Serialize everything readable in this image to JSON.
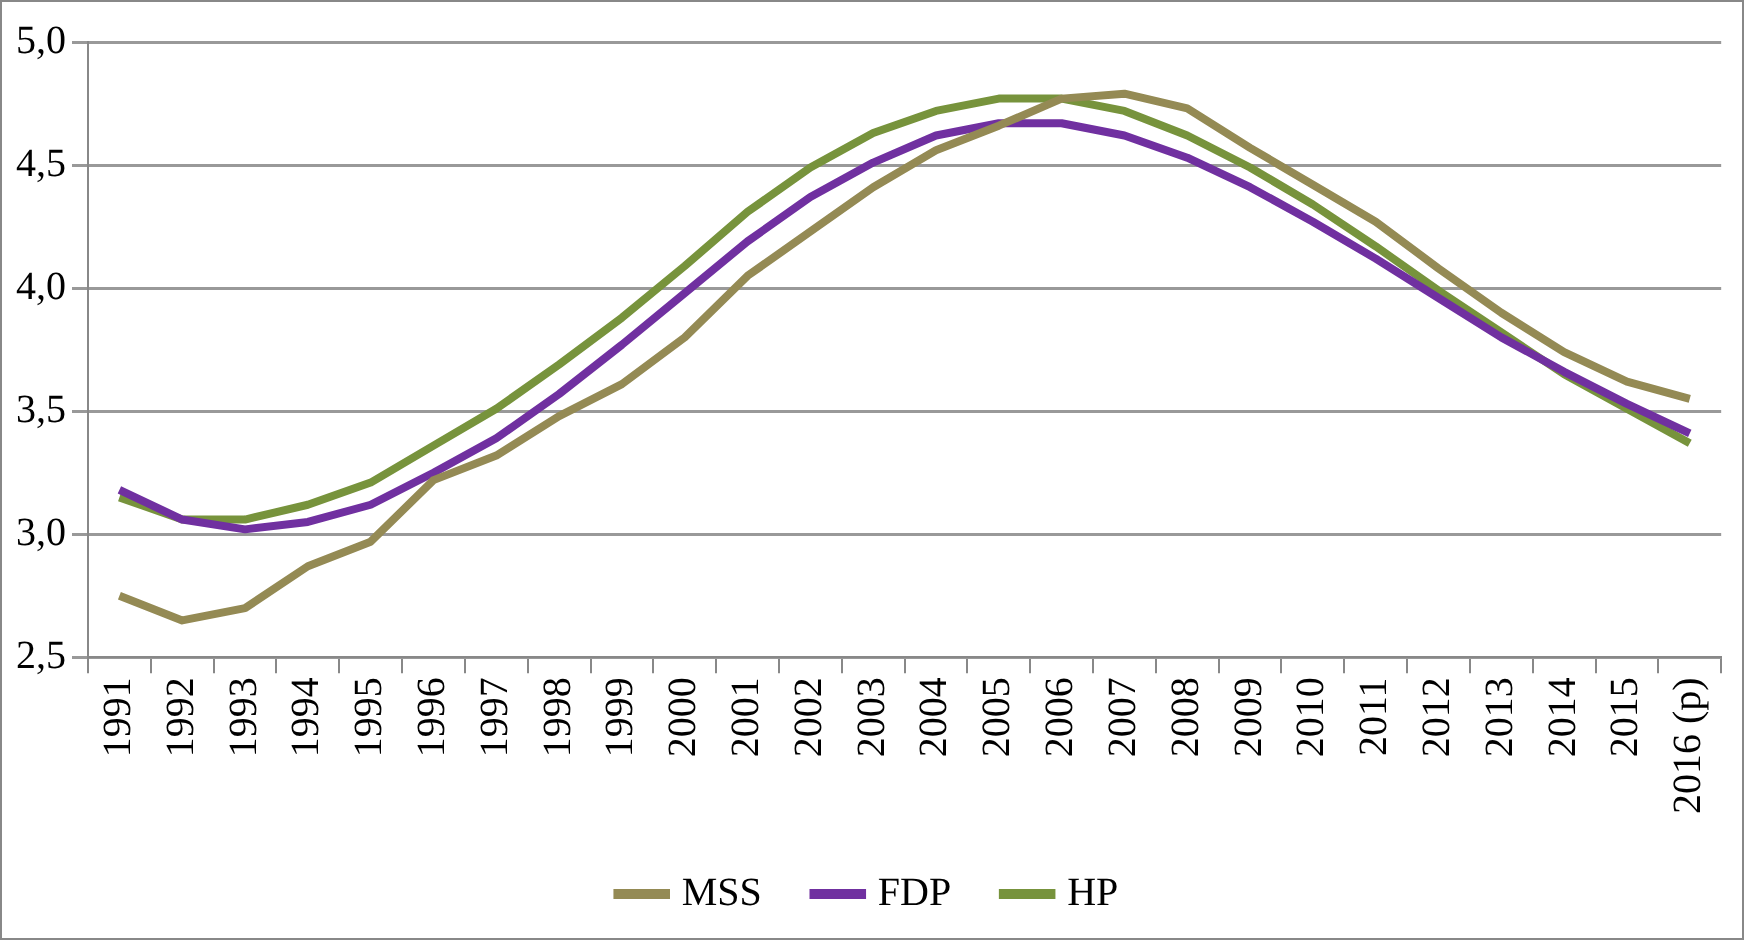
{
  "chart_data": {
    "type": "line",
    "categories": [
      "1991",
      "1992",
      "1993",
      "1994",
      "1995",
      "1996",
      "1997",
      "1998",
      "1999",
      "2000",
      "2001",
      "2002",
      "2003",
      "2004",
      "2005",
      "2006",
      "2007",
      "2008",
      "2009",
      "2010",
      "2011",
      "2012",
      "2013",
      "2014",
      "2015",
      "2016 (p)"
    ],
    "series": [
      {
        "name": "MSS",
        "color": "#948a54",
        "values": [
          2.75,
          2.65,
          2.7,
          2.87,
          2.97,
          3.22,
          3.32,
          3.48,
          3.61,
          3.8,
          4.05,
          4.23,
          4.41,
          4.56,
          4.66,
          4.77,
          4.79,
          4.73,
          4.57,
          4.42,
          4.27,
          4.08,
          3.9,
          3.74,
          3.62,
          3.55
        ]
      },
      {
        "name": "FDP",
        "color": "#7030a0",
        "values": [
          3.18,
          3.06,
          3.02,
          3.05,
          3.12,
          3.25,
          3.39,
          3.57,
          3.77,
          3.98,
          4.19,
          4.37,
          4.51,
          4.62,
          4.67,
          4.67,
          4.62,
          4.53,
          4.41,
          4.27,
          4.12,
          3.96,
          3.8,
          3.66,
          3.53,
          3.41
        ]
      },
      {
        "name": "HP",
        "color": "#77933c",
        "values": [
          3.15,
          3.06,
          3.06,
          3.12,
          3.21,
          3.36,
          3.51,
          3.69,
          3.88,
          4.09,
          4.31,
          4.49,
          4.63,
          4.72,
          4.77,
          4.77,
          4.72,
          4.62,
          4.49,
          4.34,
          4.17,
          3.99,
          3.82,
          3.65,
          3.51,
          3.37
        ]
      }
    ],
    "ylim": [
      2.5,
      5.0
    ],
    "yticks": [
      {
        "value": 2.5,
        "label": "2,5"
      },
      {
        "value": 3.0,
        "label": "3,0"
      },
      {
        "value": 3.5,
        "label": "3,5"
      },
      {
        "value": 4.0,
        "label": "4,0"
      },
      {
        "value": 4.5,
        "label": "4,5"
      },
      {
        "value": 5.0,
        "label": "5,0"
      }
    ],
    "grid": "y",
    "legend": "bottom",
    "marker": "none",
    "line_style": "solid"
  }
}
